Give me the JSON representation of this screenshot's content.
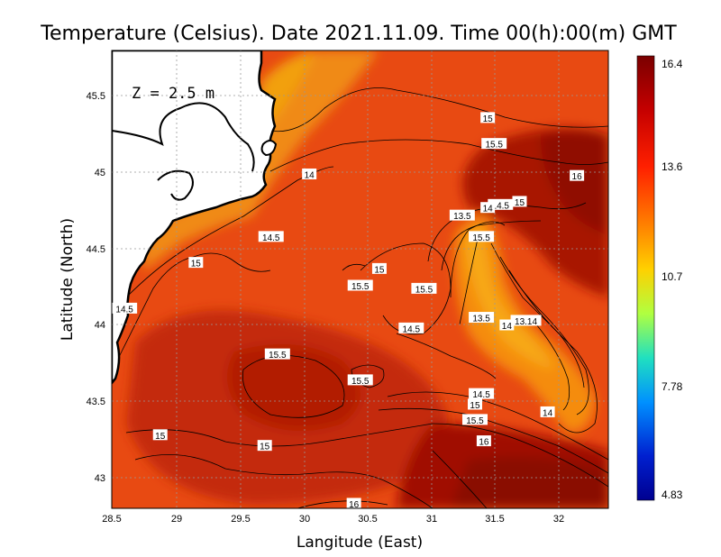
{
  "title": "Temperature (Celsius). Date 2021.11.09. Time 00(h):00(m)  GMT",
  "depth_label": "Z = 2.5 m",
  "x_axis": {
    "label": "Langitude (East)",
    "ticks": [
      "28.5",
      "29",
      "29.5",
      "30",
      "30.5",
      "31",
      "31.5",
      "32"
    ]
  },
  "y_axis": {
    "label": "Latitude (North)",
    "ticks": [
      "45.5",
      "45",
      "44.5",
      "44",
      "43.5",
      "43"
    ]
  },
  "colorbar": {
    "ticks": [
      "16.4",
      "13.6",
      "10.7",
      "7.78",
      "4.83"
    ],
    "colors": [
      "#7a0000",
      "#c40000",
      "#ff2000",
      "#ff8000",
      "#ffd000",
      "#b0ff40",
      "#20e0c0",
      "#0090ff",
      "#0020d0",
      "#000090"
    ]
  },
  "colors": {
    "land": "#ffffff",
    "sea_base": "#e84a12",
    "warm": "#b81f06",
    "hot": "#8f0d03",
    "cool": "#f28a12",
    "coast": "#000000",
    "grid": "#999999"
  },
  "contour_labels": [
    {
      "text": "15",
      "x": 31.45,
      "y": 45.35
    },
    {
      "text": "15.5",
      "x": 31.5,
      "y": 45.18
    },
    {
      "text": "16",
      "x": 32.15,
      "y": 44.97
    },
    {
      "text": "14",
      "x": 30.05,
      "y": 44.98
    },
    {
      "text": "14.5",
      "x": 31.55,
      "y": 44.78
    },
    {
      "text": "14",
      "x": 31.45,
      "y": 44.76
    },
    {
      "text": "15",
      "x": 31.7,
      "y": 44.8
    },
    {
      "text": "13.5",
      "x": 31.25,
      "y": 44.71
    },
    {
      "text": "14.5",
      "x": 29.75,
      "y": 44.57
    },
    {
      "text": "15.5",
      "x": 31.4,
      "y": 44.57
    },
    {
      "text": "15",
      "x": 29.16,
      "y": 44.4
    },
    {
      "text": "15",
      "x": 30.6,
      "y": 44.36
    },
    {
      "text": "15.5",
      "x": 30.45,
      "y": 44.25
    },
    {
      "text": "15.5",
      "x": 30.95,
      "y": 44.23
    },
    {
      "text": "14.5",
      "x": 28.6,
      "y": 44.1
    },
    {
      "text": "13.5",
      "x": 31.4,
      "y": 44.04
    },
    {
      "text": "13.14",
      "x": 31.75,
      "y": 44.02
    },
    {
      "text": "14",
      "x": 31.6,
      "y": 43.99
    },
    {
      "text": "14.5",
      "x": 30.85,
      "y": 43.97
    },
    {
      "text": "15.5",
      "x": 29.8,
      "y": 43.8
    },
    {
      "text": "15.5",
      "x": 30.45,
      "y": 43.63
    },
    {
      "text": "14.5",
      "x": 31.4,
      "y": 43.54
    },
    {
      "text": "15",
      "x": 31.35,
      "y": 43.47
    },
    {
      "text": "14",
      "x": 31.92,
      "y": 43.42
    },
    {
      "text": "15.5",
      "x": 31.35,
      "y": 43.37
    },
    {
      "text": "15",
      "x": 28.88,
      "y": 43.27
    },
    {
      "text": "16",
      "x": 31.42,
      "y": 43.23
    },
    {
      "text": "15",
      "x": 29.7,
      "y": 43.2
    },
    {
      "text": "16",
      "x": 30.4,
      "y": 42.82
    }
  ]
}
